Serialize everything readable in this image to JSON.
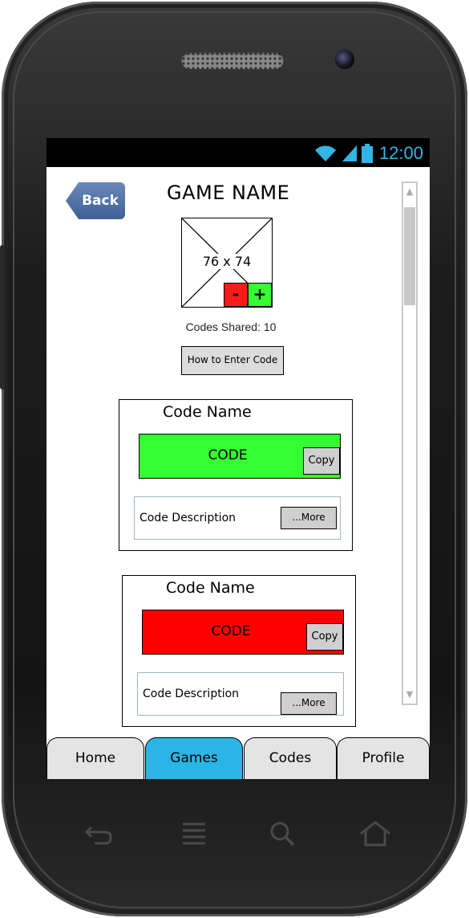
{
  "status_bar": {
    "time": "12:00",
    "icons": [
      "wifi-icon",
      "signal-icon",
      "battery-icon"
    ]
  },
  "header": {
    "back_label": "Back",
    "title": "GAME NAME"
  },
  "game_image": {
    "size_label": "76 x 74",
    "minus_label": "-",
    "plus_label": "+"
  },
  "codes_shared": "Codes Shared: 10",
  "how_to_button": "How to Enter Code",
  "code_cards": [
    {
      "name": "Code Name",
      "code": "CODE",
      "code_color": "#33ff33",
      "copy_label": "Copy",
      "description": "Code Description",
      "more_label": "...More"
    },
    {
      "name": "Code Name",
      "code": "CODE",
      "code_color": "#ff0000",
      "copy_label": "Copy",
      "description": "Code Description",
      "more_label": "...More"
    }
  ],
  "tabs": [
    {
      "label": "Home",
      "active": false
    },
    {
      "label": "Games",
      "active": true
    },
    {
      "label": "Codes",
      "active": false
    },
    {
      "label": "Profile",
      "active": false
    }
  ],
  "colors": {
    "accent": "#33b5e5",
    "active_tab": "#29b6e6",
    "back_button": "#4a6aa0"
  },
  "hardware_nav_icons": [
    "back-arrow-icon",
    "menu-icon",
    "search-icon",
    "home-icon"
  ]
}
